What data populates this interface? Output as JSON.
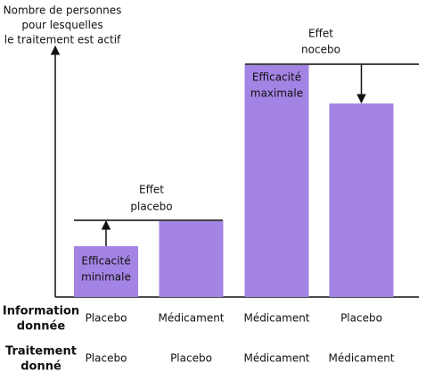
{
  "chart_data": {
    "type": "bar",
    "ylabel": [
      "Nombre de personnes",
      "pour lesquelles",
      "le traitement est actif"
    ],
    "values": [
      57,
      86,
      261,
      217
    ],
    "ylim": [
      0,
      275
    ],
    "color": "#a384e4",
    "bar_labels": [
      [
        "Efficacité",
        "minimale"
      ],
      null,
      [
        "Efficacité",
        "maximale"
      ],
      null
    ],
    "annotations": [
      {
        "text": [
          "Effet",
          "placebo"
        ]
      },
      {
        "text": [
          "Effet",
          "nocebo"
        ]
      }
    ],
    "rows": [
      {
        "label": [
          "Information",
          "donnée"
        ],
        "categories": [
          "Placebo",
          "Médicament",
          "Médicament",
          "Placebo"
        ]
      },
      {
        "label": [
          "Traitement",
          "donné"
        ],
        "categories": [
          "Placebo",
          "Placebo",
          "Médicament",
          "Médicament"
        ]
      }
    ]
  }
}
